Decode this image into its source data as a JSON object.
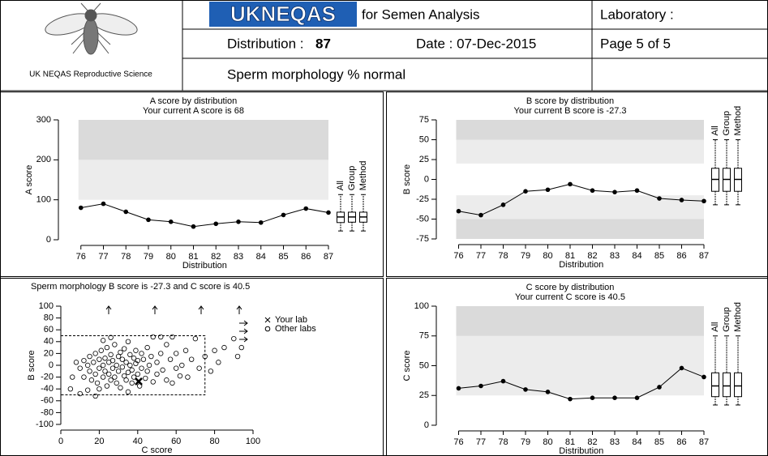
{
  "header": {
    "logo_caption": "UK NEQAS Reproductive Science",
    "brand": "UKNEQAS",
    "title_rest": "for Semen Analysis",
    "laboratory": "Laboratory :",
    "distribution_label": "Distribution :",
    "distribution": "87",
    "date": "Date : 07-Dec-2015",
    "page": "Page 5 of 5",
    "analyte": "Sperm morphology % normal"
  },
  "chart_data": [
    {
      "type": "line",
      "title": "A score by distribution",
      "subtitle": "Your current A score is 68",
      "xlabel": "Distribution",
      "ylabel": "A score",
      "color": "#000000",
      "x": [
        76,
        77,
        78,
        79,
        80,
        81,
        82,
        83,
        84,
        85,
        86,
        87
      ],
      "values": [
        80,
        90,
        70,
        50,
        45,
        33,
        40,
        45,
        43,
        62,
        78,
        68
      ],
      "xlim": [
        75,
        87
      ],
      "xticks": [
        76,
        77,
        78,
        79,
        80,
        81,
        82,
        83,
        84,
        85,
        86,
        87
      ],
      "ylim": [
        0,
        300
      ],
      "yticks": [
        0,
        100,
        200,
        300
      ],
      "bands": [
        {
          "from": 100,
          "to": 200,
          "color": "#ececec"
        },
        {
          "from": 200,
          "to": 300,
          "color": "#dadada"
        }
      ],
      "boxes": [
        {
          "name": "All",
          "whislo": 22,
          "q1": 43,
          "med": 57,
          "q3": 69,
          "whishi": 113
        },
        {
          "name": "Group",
          "whislo": 22,
          "q1": 44,
          "med": 57,
          "q3": 69,
          "whishi": 113
        },
        {
          "name": "Method",
          "whislo": 22,
          "q1": 44,
          "med": 57,
          "q3": 69,
          "whishi": 113
        }
      ]
    },
    {
      "type": "line",
      "title": "B score by distribution",
      "subtitle": "Your current B score is -27.3",
      "xlabel": "Distribution",
      "ylabel": "B score",
      "color": "#000000",
      "x": [
        76,
        77,
        78,
        79,
        80,
        81,
        82,
        83,
        84,
        85,
        86,
        87
      ],
      "values": [
        -40,
        -45,
        -32,
        -15,
        -13,
        -6,
        -14,
        -16,
        -14,
        -24,
        -26,
        -27.3
      ],
      "xlim": [
        75,
        87
      ],
      "xticks": [
        76,
        77,
        78,
        79,
        80,
        81,
        82,
        83,
        84,
        85,
        86,
        87
      ],
      "ylim": [
        -75,
        75
      ],
      "yticks": [
        -75,
        -50,
        -25,
        0,
        25,
        50,
        75
      ],
      "bands": [
        {
          "from": -75,
          "to": -50,
          "color": "#dadada"
        },
        {
          "from": -50,
          "to": -20,
          "color": "#ececec"
        },
        {
          "from": 20,
          "to": 50,
          "color": "#ececec"
        },
        {
          "from": 50,
          "to": 75,
          "color": "#dadada"
        }
      ],
      "boxes": [
        {
          "name": "All",
          "whislo": -32,
          "q1": -15,
          "med": 0,
          "q3": 14,
          "whishi": 50
        },
        {
          "name": "Group",
          "whislo": -32,
          "q1": -15,
          "med": 0,
          "q3": 14,
          "whishi": 50
        },
        {
          "name": "Method",
          "whislo": -32,
          "q1": -15,
          "med": 0,
          "q3": 14,
          "whishi": 50
        }
      ]
    },
    {
      "type": "scatter",
      "title": "Sperm morphology B score is -27.3 and C score is 40.5",
      "xlabel": "C score",
      "ylabel": "B score",
      "xlim": [
        0,
        100
      ],
      "xticks": [
        0,
        20,
        40,
        60,
        80,
        100
      ],
      "ylim": [
        -100,
        100
      ],
      "yticks": [
        -100,
        -80,
        -60,
        -40,
        -20,
        0,
        20,
        40,
        60,
        80,
        100
      ],
      "region": {
        "x": [
          0,
          75
        ],
        "y": [
          -50,
          50
        ]
      },
      "series": [
        {
          "name": "Your lab",
          "marker": "x",
          "x": [
            40.5
          ],
          "values": [
            -27.3
          ]
        },
        {
          "name": "Other labs",
          "marker": "o",
          "x": [
            8,
            10,
            12,
            12,
            14,
            15,
            15,
            16,
            17,
            18,
            18,
            19,
            20,
            20,
            20,
            21,
            22,
            22,
            23,
            23,
            24,
            24,
            25,
            25,
            26,
            26,
            27,
            27,
            28,
            28,
            29,
            29,
            30,
            30,
            31,
            31,
            32,
            32,
            33,
            33,
            34,
            34,
            35,
            35,
            36,
            36,
            37,
            37,
            38,
            38,
            39,
            39,
            40,
            40,
            41,
            42,
            42,
            43,
            44,
            45,
            45,
            46,
            47,
            48,
            48,
            50,
            50,
            52,
            53,
            55,
            55,
            57,
            58,
            60,
            60,
            62,
            63,
            65,
            66,
            68,
            70,
            72,
            75,
            78,
            80,
            82,
            85,
            92,
            5,
            10,
            14,
            18,
            26,
            35,
            52,
            90,
            94,
            58,
            6,
            22
          ],
          "values": [
            5,
            -5,
            8,
            -20,
            0,
            15,
            -10,
            -25,
            5,
            20,
            -15,
            -30,
            10,
            -5,
            -40,
            25,
            0,
            -20,
            12,
            -10,
            30,
            -35,
            5,
            -15,
            18,
            -25,
            -5,
            8,
            35,
            -20,
            0,
            -30,
            15,
            -10,
            22,
            -38,
            -3,
            10,
            -18,
            28,
            5,
            -25,
            -12,
            40,
            0,
            18,
            -30,
            -8,
            12,
            -20,
            25,
            3,
            -15,
            8,
            -35,
            20,
            -5,
            10,
            -22,
            30,
            -10,
            0,
            15,
            -28,
            48,
            5,
            -15,
            20,
            -8,
            35,
            -25,
            10,
            48,
            -5,
            20,
            -18,
            0,
            25,
            -20,
            10,
            45,
            -5,
            15,
            -10,
            25,
            5,
            30,
            15,
            -40,
            -48,
            -42,
            -52,
            47,
            -45,
            48,
            45,
            30,
            -30,
            -20,
            42
          ]
        }
      ]
    },
    {
      "type": "line",
      "title": "C score by distribution",
      "subtitle": "Your current C score is 40.5",
      "xlabel": "Distribution",
      "ylabel": "C score",
      "color": "#000000",
      "x": [
        76,
        77,
        78,
        79,
        80,
        81,
        82,
        83,
        84,
        85,
        86,
        87
      ],
      "values": [
        31,
        33,
        37,
        30,
        28,
        22,
        23,
        23,
        23,
        32,
        48,
        40.5
      ],
      "xlim": [
        75,
        87
      ],
      "xticks": [
        76,
        77,
        78,
        79,
        80,
        81,
        82,
        83,
        84,
        85,
        86,
        87
      ],
      "ylim": [
        0,
        100
      ],
      "yticks": [
        0,
        25,
        50,
        75,
        100
      ],
      "bands": [
        {
          "from": 25,
          "to": 75,
          "color": "#ececec"
        },
        {
          "from": 75,
          "to": 100,
          "color": "#dadada"
        }
      ],
      "boxes": [
        {
          "name": "All",
          "whislo": 17,
          "q1": 24,
          "med": 33,
          "q3": 44,
          "whishi": 75
        },
        {
          "name": "Group",
          "whislo": 17,
          "q1": 24,
          "med": 33,
          "q3": 44,
          "whishi": 75
        },
        {
          "name": "Method",
          "whislo": 17,
          "q1": 24,
          "med": 33,
          "q3": 44,
          "whishi": 75
        }
      ]
    }
  ]
}
